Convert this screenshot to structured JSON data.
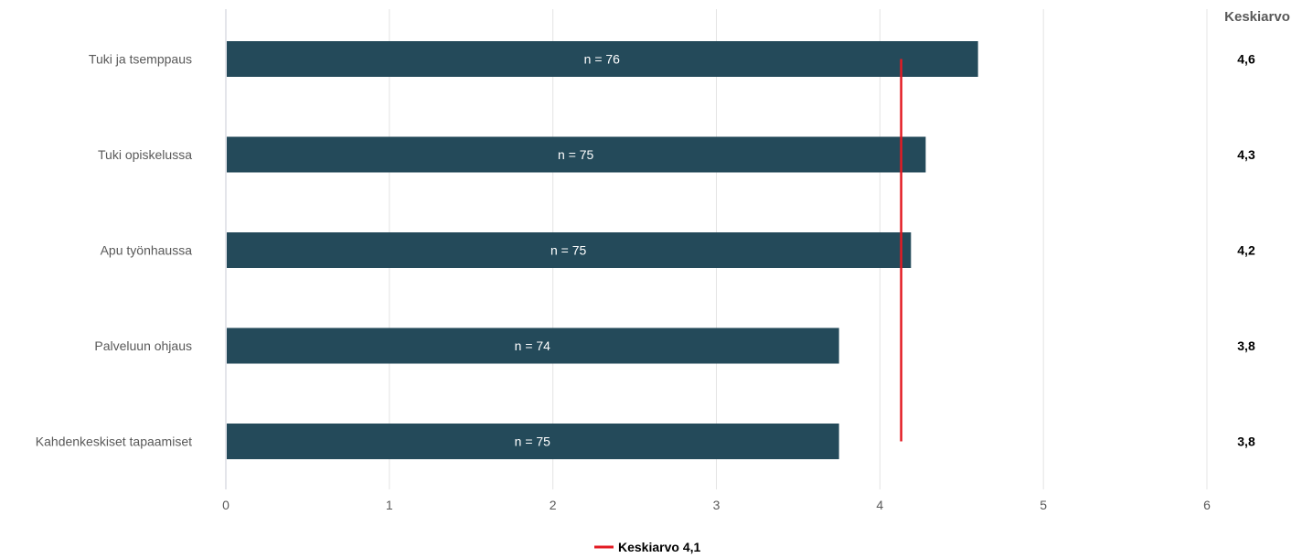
{
  "chart_data": {
    "type": "bar",
    "orientation": "horizontal",
    "categories": [
      "Tuki ja tsemppaus",
      "Tuki opiskelussa",
      "Apu työnhaussa",
      "Palveluun ohjaus",
      "Kahdenkeskiset tapaamiset"
    ],
    "values": [
      4.6,
      4.28,
      4.19,
      3.75,
      3.75
    ],
    "n_labels": [
      "n = 76",
      "n = 75",
      "n = 75",
      "n = 74",
      "n = 75"
    ],
    "average_labels": [
      "4,6",
      "4,3",
      "4,2",
      "3,8",
      "3,8"
    ],
    "average_column_header": "Keskiarvo",
    "reference_line": {
      "value": 4.13,
      "label": "Keskiarvo 4,1",
      "color": "#e31b23"
    },
    "xlim": [
      0,
      6
    ],
    "xticks": [
      0,
      1,
      2,
      3,
      4,
      5,
      6
    ],
    "bar_color": "#244a5a",
    "grid": "vertical",
    "legend_position": "bottom-center"
  }
}
